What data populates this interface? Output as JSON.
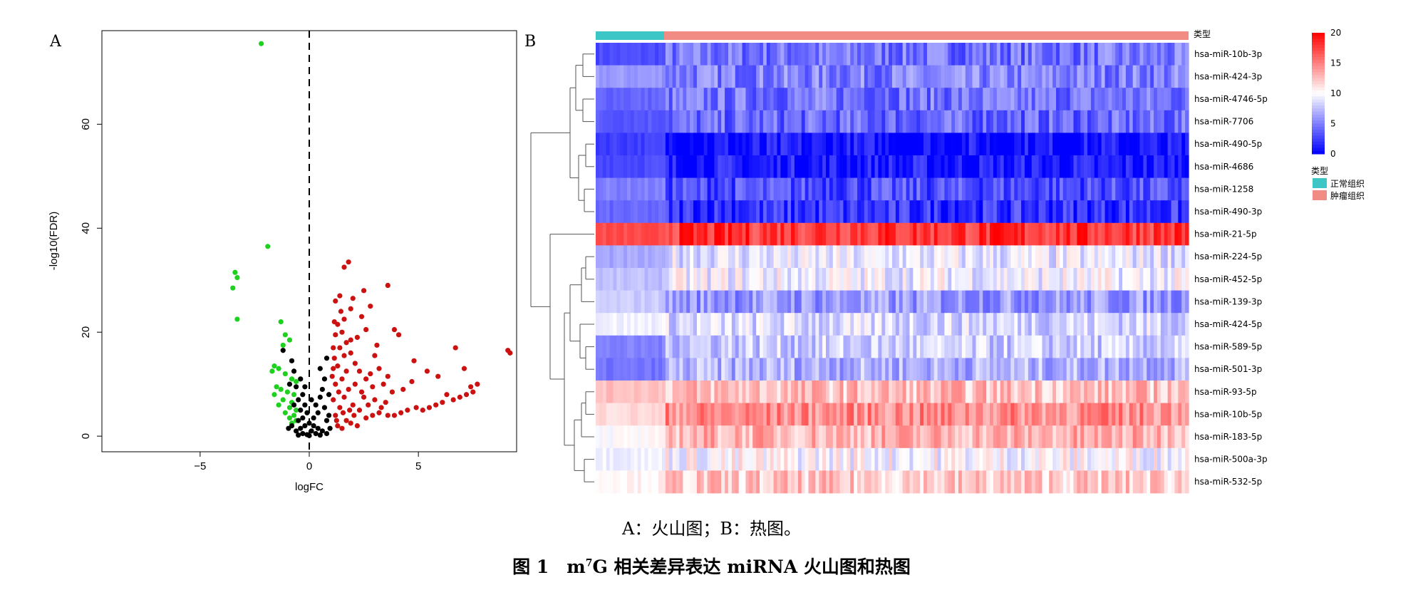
{
  "panels": {
    "a_label": "A",
    "b_label": "B"
  },
  "chart_data": [
    {
      "type": "scatter",
      "title": "",
      "xlabel": "logFC",
      "ylabel": "-log10(FDR)",
      "xlim": [
        -9.5,
        9.5
      ],
      "ylim": [
        -3,
        78
      ],
      "xticks": [
        -5,
        0,
        5
      ],
      "yticks": [
        0,
        20,
        40,
        60
      ],
      "reference_line": {
        "x": 0,
        "style": "dashed"
      },
      "series": [
        {
          "color": "#1fd11f",
          "points": [
            [
              -2.2,
              75.5
            ],
            [
              -1.9,
              36.5
            ],
            [
              -3.4,
              31.5
            ],
            [
              -3.3,
              30.5
            ],
            [
              -3.5,
              28.5
            ],
            [
              -3.3,
              22.5
            ],
            [
              -1.3,
              22
            ],
            [
              -1.1,
              19.5
            ],
            [
              -1.2,
              17.5
            ],
            [
              -0.9,
              18.5
            ],
            [
              -1.6,
              13.5
            ],
            [
              -1.4,
              13
            ],
            [
              -1.7,
              12.5
            ],
            [
              -1.1,
              12
            ],
            [
              -0.8,
              11
            ],
            [
              -0.6,
              10.5
            ],
            [
              -1.5,
              9.5
            ],
            [
              -1.3,
              9
            ],
            [
              -1,
              8.5
            ],
            [
              -0.7,
              8
            ],
            [
              -1.6,
              8
            ],
            [
              -1.2,
              7
            ],
            [
              -0.8,
              6.5
            ],
            [
              -1.4,
              6
            ],
            [
              -0.9,
              5.5
            ],
            [
              -0.6,
              5
            ],
            [
              -1.1,
              4.5
            ],
            [
              -0.7,
              4
            ],
            [
              -0.9,
              3.5
            ],
            [
              -0.8,
              2.5
            ],
            [
              -0.6,
              3
            ]
          ]
        },
        {
          "color": "#000000",
          "points": [
            [
              -1.2,
              16.5
            ],
            [
              -0.8,
              14.5
            ],
            [
              -0.7,
              12.5
            ],
            [
              -0.4,
              11
            ],
            [
              -0.6,
              9.5
            ],
            [
              -0.3,
              8
            ],
            [
              -0.5,
              7
            ],
            [
              -0.2,
              6
            ],
            [
              -0.4,
              5
            ],
            [
              -0.1,
              4.5
            ],
            [
              -0.3,
              3.5
            ],
            [
              -0.5,
              3
            ],
            [
              0,
              2.5
            ],
            [
              -0.2,
              2
            ],
            [
              0.2,
              2
            ],
            [
              -0.4,
              1.5
            ],
            [
              0.4,
              1.5
            ],
            [
              -0.6,
              1
            ],
            [
              0.1,
              1
            ],
            [
              0.6,
              1
            ],
            [
              -0.3,
              0.5
            ],
            [
              0.3,
              0.5
            ],
            [
              -0.1,
              0.3
            ],
            [
              0.8,
              0.5
            ],
            [
              -0.5,
              0.2
            ],
            [
              0.5,
              0.2
            ],
            [
              0,
              0.1
            ],
            [
              0.2,
              3.5
            ],
            [
              0.4,
              4.5
            ],
            [
              0.3,
              6
            ],
            [
              0.5,
              7.5
            ],
            [
              0.6,
              9
            ],
            [
              0.7,
              11
            ],
            [
              0.5,
              13
            ],
            [
              0.8,
              15
            ],
            [
              0.9,
              8
            ],
            [
              0.7,
              5.5
            ],
            [
              0.8,
              3
            ],
            [
              -0.7,
              6
            ],
            [
              -0.9,
              10
            ],
            [
              -0.2,
              9.5
            ],
            [
              0.1,
              7
            ],
            [
              0.9,
              4
            ],
            [
              -0.8,
              2
            ],
            [
              0.95,
              1.5
            ],
            [
              -0.95,
              1.5
            ]
          ]
        },
        {
          "color": "#cc1111",
          "points": [
            [
              9.2,
              16
            ],
            [
              9.1,
              16.5
            ],
            [
              7.7,
              10
            ],
            [
              7.5,
              8.5
            ],
            [
              7.4,
              9.5
            ],
            [
              7.2,
              8
            ],
            [
              6.9,
              7.5
            ],
            [
              6.6,
              7
            ],
            [
              6.3,
              8
            ],
            [
              6.1,
              6.5
            ],
            [
              5.8,
              6
            ],
            [
              5.5,
              5.5
            ],
            [
              5.2,
              5
            ],
            [
              4.9,
              5.5
            ],
            [
              4.5,
              5
            ],
            [
              4.2,
              4.5
            ],
            [
              3.9,
              4
            ],
            [
              3.6,
              4
            ],
            [
              3.2,
              4.5
            ],
            [
              2.9,
              4
            ],
            [
              2.6,
              3.5
            ],
            [
              6.7,
              17
            ],
            [
              7.1,
              13
            ],
            [
              5.9,
              11.5
            ],
            [
              5.4,
              12.5
            ],
            [
              4.7,
              10.5
            ],
            [
              4.3,
              9
            ],
            [
              3.8,
              8.5
            ],
            [
              3.4,
              10
            ],
            [
              2.9,
              9.5
            ],
            [
              2.6,
              11
            ],
            [
              2.3,
              12.5
            ],
            [
              2.1,
              14
            ],
            [
              1.9,
              16
            ],
            [
              1.7,
              18
            ],
            [
              1.5,
              20
            ],
            [
              1.3,
              21.5
            ],
            [
              1.6,
              22.5
            ],
            [
              1.9,
              24.5
            ],
            [
              2.4,
              23
            ],
            [
              2.8,
              25
            ],
            [
              1.4,
              27
            ],
            [
              1.6,
              32.5
            ],
            [
              1.8,
              33.5
            ],
            [
              2.5,
              28
            ],
            [
              3.6,
              29
            ],
            [
              3.9,
              20.5
            ],
            [
              4.1,
              19.5
            ],
            [
              4.8,
              14.5
            ],
            [
              3.1,
              17.5
            ],
            [
              1.2,
              26
            ],
            [
              1.1,
              17
            ],
            [
              1.1,
              13
            ],
            [
              1.2,
              10
            ],
            [
              1.1,
              7
            ],
            [
              1.2,
              4
            ],
            [
              1.3,
              2
            ],
            [
              1.5,
              1.5
            ],
            [
              1.7,
              3
            ],
            [
              1.9,
              2.5
            ],
            [
              2.2,
              2
            ],
            [
              1.4,
              5.5
            ],
            [
              1.6,
              7.5
            ],
            [
              1.8,
              9
            ],
            [
              2,
              6
            ],
            [
              2.3,
              5
            ],
            [
              2.5,
              7.5
            ],
            [
              2.7,
              6
            ],
            [
              3,
              7
            ],
            [
              3.3,
              5.5
            ],
            [
              3.5,
              6.5
            ],
            [
              1.05,
              11.5
            ],
            [
              1.15,
              15
            ],
            [
              1.3,
              13.5
            ],
            [
              1.5,
              11
            ],
            [
              1.7,
              12.5
            ],
            [
              2.1,
              10
            ],
            [
              2.4,
              8.5
            ],
            [
              2.8,
              12
            ],
            [
              3.2,
              13
            ],
            [
              3.6,
              11.5
            ],
            [
              1.2,
              19.5
            ],
            [
              1.4,
              17
            ],
            [
              1.6,
              15.5
            ],
            [
              1.9,
              18.5
            ],
            [
              2.2,
              19
            ],
            [
              1.25,
              3
            ],
            [
              1.35,
              8.5
            ],
            [
              1.55,
              4.5
            ],
            [
              1.85,
              5
            ],
            [
              2.05,
              4
            ],
            [
              1.15,
              22
            ],
            [
              1.45,
              24
            ],
            [
              2,
              26.5
            ],
            [
              2.6,
              20.5
            ],
            [
              3,
              15.5
            ]
          ]
        }
      ]
    },
    {
      "type": "heatmap",
      "legend_title": "类型",
      "color_scale": {
        "min": 0,
        "max": 20,
        "ticks": [
          0,
          5,
          10,
          15,
          20
        ],
        "low": "#0000ff",
        "mid": "#ffffff",
        "high": "#ff0000"
      },
      "groups": [
        {
          "label": "正常组织",
          "color": "#3cc6c6"
        },
        {
          "label": "肿瘤组织",
          "color": "#f08c84"
        }
      ],
      "rows": [
        "hsa-miR-10b-3p",
        "hsa-miR-424-3p",
        "hsa-miR-4746-5p",
        "hsa-miR-7706",
        "hsa-miR-490-5p",
        "hsa-miR-4686",
        "hsa-miR-1258",
        "hsa-miR-490-3p",
        "hsa-miR-21-5p",
        "hsa-miR-224-5p",
        "hsa-miR-452-5p",
        "hsa-miR-139-3p",
        "hsa-miR-424-5p",
        "hsa-miR-589-5p",
        "hsa-miR-501-3p",
        "hsa-miR-93-5p",
        "hsa-miR-10b-5p",
        "hsa-miR-183-5p",
        "hsa-miR-500a-3p",
        "hsa-miR-532-5p"
      ],
      "mean_expression": {
        "normal": [
          3,
          6,
          4,
          3.5,
          2.5,
          3,
          5,
          4,
          17,
          6.5,
          7.5,
          8,
          9.5,
          5,
          4.5,
          12.5,
          11.5,
          10,
          9.5,
          10.5
        ],
        "tumor": [
          4.5,
          5,
          4.5,
          4,
          0.5,
          0.8,
          3,
          2,
          18,
          9,
          9.5,
          6,
          8.5,
          8,
          7,
          12.5,
          14.5,
          13,
          10,
          12
        ]
      }
    }
  ],
  "caption": {
    "sub": "A：火山图；B：热图。",
    "main_prefix": "图 1　m",
    "main_sup": "7",
    "main_suffix": "G 相关差异表达 miRNA 火山图和热图"
  }
}
